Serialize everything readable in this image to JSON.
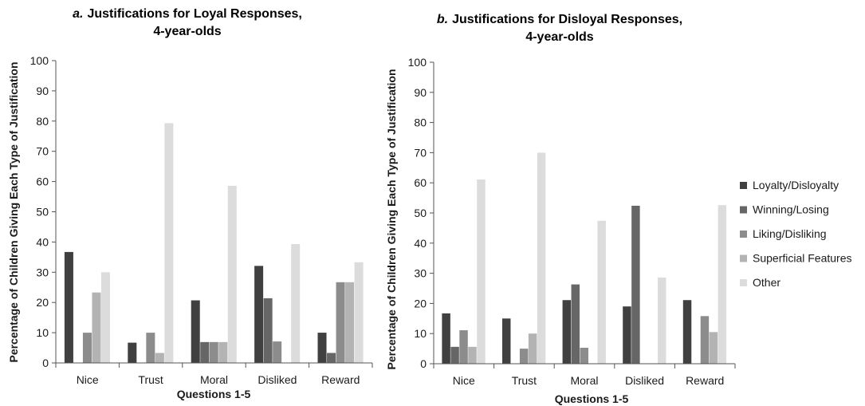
{
  "chart_data": [
    {
      "type": "bar",
      "title_prefix": "a.",
      "title_line1": "Justifications for Loyal Responses,",
      "title_line2": "4-year-olds",
      "xlabel": "Questions 1-5",
      "ylabel": "Percentage of Children Giving Each Type of Justification",
      "ylim": [
        0,
        100
      ],
      "yticks": [
        0,
        10,
        20,
        30,
        40,
        50,
        60,
        70,
        80,
        90,
        100
      ],
      "categories": [
        "Nice",
        "Trust",
        "Moral",
        "Disliked",
        "Reward"
      ],
      "series": [
        {
          "name": "Loyalty/Disloyalty",
          "values": [
            36.7,
            6.7,
            20.7,
            32.1,
            10.0
          ]
        },
        {
          "name": "Winning/Losing",
          "values": [
            0,
            0,
            6.9,
            21.4,
            3.3
          ]
        },
        {
          "name": "Liking/Disliking",
          "values": [
            10.0,
            10.0,
            6.9,
            7.1,
            26.7
          ]
        },
        {
          "name": "Superficial Features",
          "values": [
            23.3,
            3.3,
            6.9,
            0,
            26.7
          ]
        },
        {
          "name": "Other",
          "values": [
            30.0,
            79.3,
            58.6,
            39.3,
            33.3
          ]
        }
      ]
    },
    {
      "type": "bar",
      "title_prefix": "b.",
      "title_line1": "Justifications for Disloyal Responses,",
      "title_line2": "4-year-olds",
      "xlabel": "Questions 1-5",
      "ylabel": "Percentage of Children Giving Each Type of Justification",
      "ylim": [
        0,
        100
      ],
      "yticks": [
        0,
        10,
        20,
        30,
        40,
        50,
        60,
        70,
        80,
        90,
        100
      ],
      "categories": [
        "Nice",
        "Trust",
        "Moral",
        "Disliked",
        "Reward"
      ],
      "series": [
        {
          "name": "Loyalty/Disloyalty",
          "values": [
            16.7,
            15.0,
            21.1,
            19.0,
            21.1
          ]
        },
        {
          "name": "Winning/Losing",
          "values": [
            5.6,
            0,
            26.3,
            52.4,
            0
          ]
        },
        {
          "name": "Liking/Disliking",
          "values": [
            11.1,
            5.0,
            5.3,
            0,
            15.8
          ]
        },
        {
          "name": "Superficial Features",
          "values": [
            5.6,
            10.0,
            0,
            0,
            10.5
          ]
        },
        {
          "name": "Other",
          "values": [
            61.1,
            70.0,
            47.4,
            28.6,
            52.6
          ]
        }
      ]
    }
  ],
  "legend": {
    "placement": "right",
    "items": [
      {
        "label": "Loyalty/Disloyalty",
        "color": "#404040"
      },
      {
        "label": "Winning/Losing",
        "color": "#666666"
      },
      {
        "label": "Liking/Disliking",
        "color": "#8c8c8c"
      },
      {
        "label": "Superficial Features",
        "color": "#b3b3b3"
      },
      {
        "label": "Other",
        "color": "#dcdcdc"
      }
    ]
  },
  "colors": [
    "#404040",
    "#666666",
    "#8c8c8c",
    "#b3b3b3",
    "#dcdcdc"
  ]
}
